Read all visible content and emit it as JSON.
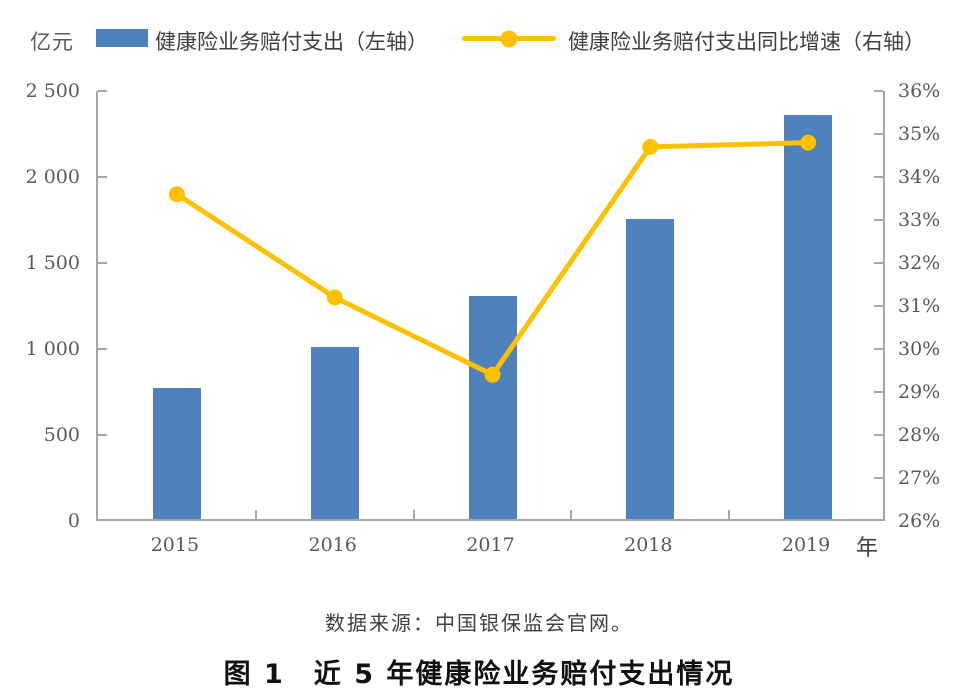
{
  "legend": {
    "unit_label": "亿元",
    "items": [
      {
        "label": "健康险业务赔付支出（左轴）",
        "marker": "bar-swatch",
        "color": "#4F81BD"
      },
      {
        "label": "健康险业务赔付支出同比增速（右轴）",
        "marker": "line-dot",
        "color": "#FFC000"
      }
    ]
  },
  "source_note": "数据来源：中国银保监会官网。",
  "caption": "图 1　近 5 年健康险业务赔付支出情况",
  "chart_data": {
    "type": "bar+line combo",
    "categories": [
      "2015",
      "2016",
      "2017",
      "2018",
      "2019"
    ],
    "series": [
      {
        "name": "健康险业务赔付支出（左轴）",
        "type": "bar",
        "axis": "left",
        "unit": "亿元",
        "values": [
          763,
          1001,
          1295,
          1744,
          2351
        ],
        "color": "#4F81BD"
      },
      {
        "name": "健康险业务赔付支出同比增速（右轴）",
        "type": "line",
        "axis": "right",
        "unit": "%",
        "values": [
          33.6,
          31.2,
          29.4,
          34.7,
          34.8
        ],
        "color": "#FFC000"
      }
    ],
    "left_axis": {
      "label": "亿元",
      "min": 0,
      "max": 2500,
      "step": 500,
      "tick_labels": [
        "0",
        "500",
        "1 000",
        "1 500",
        "2 000",
        "2 500"
      ]
    },
    "right_axis": {
      "min": 26,
      "max": 36,
      "step": 1,
      "tick_labels": [
        "26%",
        "27%",
        "28%",
        "29%",
        "30%",
        "31%",
        "32%",
        "33%",
        "34%",
        "35%",
        "36%"
      ]
    },
    "xlabel": "年",
    "grid": false,
    "legend_position": "top",
    "axis_color": "#a6a6a6"
  }
}
